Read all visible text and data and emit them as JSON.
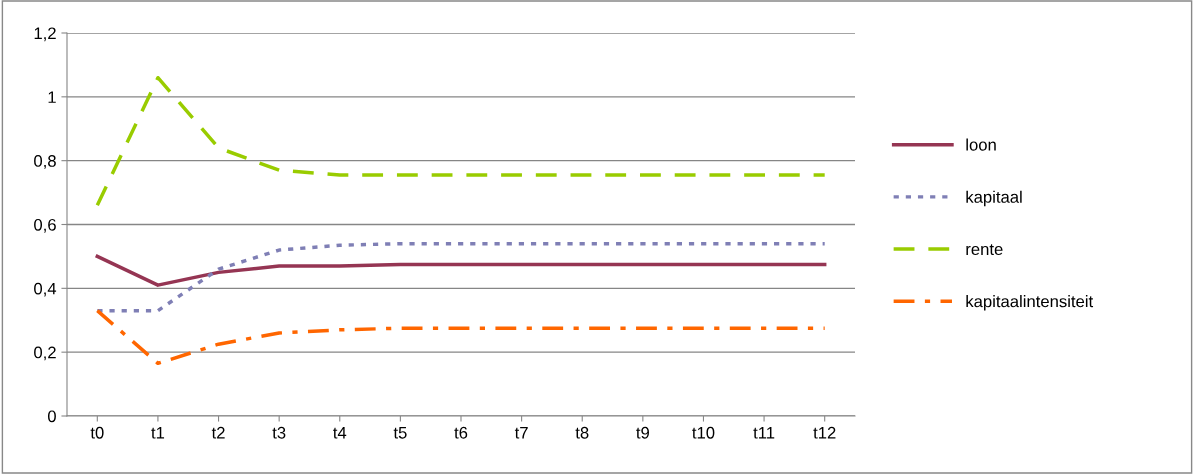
{
  "chart_data": {
    "type": "line",
    "categories": [
      "t0",
      "t1",
      "t2",
      "t3",
      "t4",
      "t5",
      "t6",
      "t7",
      "t8",
      "t9",
      "t10",
      "t11",
      "t12"
    ],
    "series": [
      {
        "name": "loon",
        "color": "#953553",
        "line_style": "solid",
        "values": [
          0.5,
          0.41,
          0.45,
          0.47,
          0.47,
          0.475,
          0.475,
          0.475,
          0.475,
          0.475,
          0.475,
          0.475,
          0.475
        ]
      },
      {
        "name": "kapitaal",
        "color": "#7f7fb5",
        "line_style": "dotted",
        "values": [
          0.33,
          0.33,
          0.46,
          0.52,
          0.535,
          0.54,
          0.54,
          0.54,
          0.54,
          0.54,
          0.54,
          0.54,
          0.54
        ]
      },
      {
        "name": "rente",
        "color": "#99cc00",
        "line_style": "dashed",
        "values": [
          0.66,
          1.06,
          0.84,
          0.77,
          0.755,
          0.755,
          0.755,
          0.755,
          0.755,
          0.755,
          0.755,
          0.755,
          0.755
        ]
      },
      {
        "name": "kapitaalintensiteit",
        "color": "#ff6600",
        "line_style": "dashdot",
        "values": [
          0.33,
          0.165,
          0.225,
          0.26,
          0.27,
          0.275,
          0.275,
          0.275,
          0.275,
          0.275,
          0.275,
          0.275,
          0.275
        ]
      }
    ],
    "ylim": [
      0,
      1.2
    ],
    "yticks": [
      {
        "value": 0,
        "label": "0"
      },
      {
        "value": 0.2,
        "label": "0,2"
      },
      {
        "value": 0.4,
        "label": "0,4"
      },
      {
        "value": 0.6,
        "label": "0,6"
      },
      {
        "value": 0.8,
        "label": "0,8"
      },
      {
        "value": 1,
        "label": "1"
      },
      {
        "value": 1.2,
        "label": "1,2"
      }
    ],
    "grid": "y",
    "legend": "right",
    "marker": "none"
  }
}
